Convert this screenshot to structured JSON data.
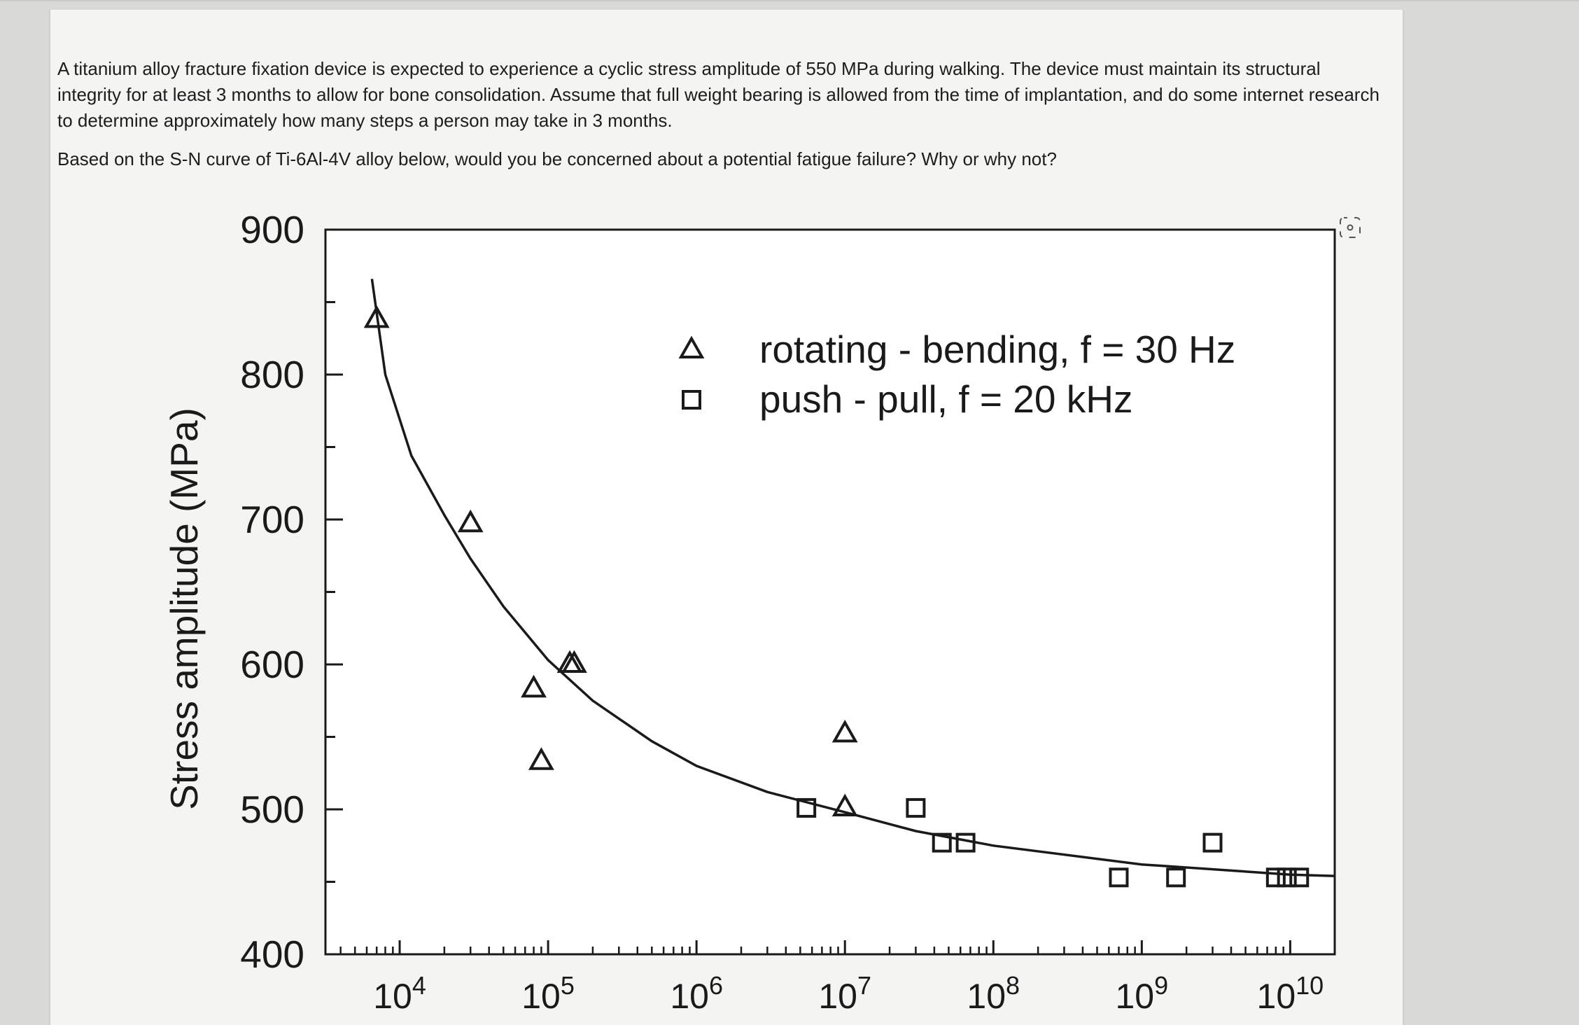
{
  "question": {
    "paragraph1": "A titanium alloy fracture fixation device is expected to experience a cyclic stress amplitude of 550 MPa during walking. The device must maintain its structural integrity for at least 3 months to allow for bone consolidation.  Assume that full weight bearing is allowed from the time of implantation, and do some internet research to determine approximately how many steps a person may take in 3 months.",
    "paragraph2": "Based on the S-N curve of Ti-6Al-4V alloy below, would you be concerned about a potential fatigue failure? Why or why not?"
  },
  "zoom_icon": "focus-zoom-icon",
  "chart_data": {
    "type": "scatter",
    "title": "",
    "xlabel": "",
    "ylabel": "Stress amplitude (MPa)",
    "xscale": "log",
    "xlim_exp": [
      3.5,
      10.3
    ],
    "ylim": [
      400,
      900
    ],
    "y_ticks": [
      "400",
      "500",
      "600",
      "700",
      "800",
      "900"
    ],
    "x_ticks": [
      {
        "base": "10",
        "exp": "4"
      },
      {
        "base": "10",
        "exp": "5"
      },
      {
        "base": "10",
        "exp": "6"
      },
      {
        "base": "10",
        "exp": "7"
      },
      {
        "base": "10",
        "exp": "8"
      },
      {
        "base": "10",
        "exp": "9"
      },
      {
        "base": "10",
        "exp": "10"
      }
    ],
    "legend": {
      "position": "top-right",
      "entries": [
        {
          "marker": "triangle",
          "label": "rotating - bending, f = 30 Hz"
        },
        {
          "marker": "square",
          "label": "push - pull, f = 20 kHz"
        }
      ]
    },
    "series": [
      {
        "name": "rotating - bending, f = 30 Hz",
        "marker": "triangle",
        "points": [
          [
            7000,
            838
          ],
          [
            30000,
            697
          ],
          [
            80000,
            583
          ],
          [
            90000,
            533
          ],
          [
            140000,
            600
          ],
          [
            150000,
            600
          ],
          [
            10000000,
            552
          ],
          [
            10000000,
            501
          ]
        ]
      },
      {
        "name": "push - pull, f = 20 kHz",
        "marker": "square",
        "points": [
          [
            5500000,
            501
          ],
          [
            30000000,
            501
          ],
          [
            45000000,
            477
          ],
          [
            65000000,
            477
          ],
          [
            700000000,
            453
          ],
          [
            1700000000,
            453
          ],
          [
            3000000000,
            477
          ],
          [
            8000000000,
            453
          ],
          [
            9500000000,
            453
          ],
          [
            11500000000,
            453
          ]
        ]
      }
    ],
    "fit_curve": {
      "name": "S-N curve",
      "points": [
        [
          6500,
          866
        ],
        [
          8000,
          800
        ],
        [
          12000,
          744
        ],
        [
          20000,
          703
        ],
        [
          30000,
          673
        ],
        [
          50000,
          640
        ],
        [
          100000,
          603
        ],
        [
          200000,
          575
        ],
        [
          500000,
          547
        ],
        [
          1000000,
          530
        ],
        [
          3000000,
          512
        ],
        [
          10000000,
          498
        ],
        [
          30000000,
          485
        ],
        [
          100000000,
          475
        ],
        [
          1000000000,
          462
        ],
        [
          10000000000,
          455
        ],
        [
          20000000000,
          454
        ]
      ]
    }
  }
}
